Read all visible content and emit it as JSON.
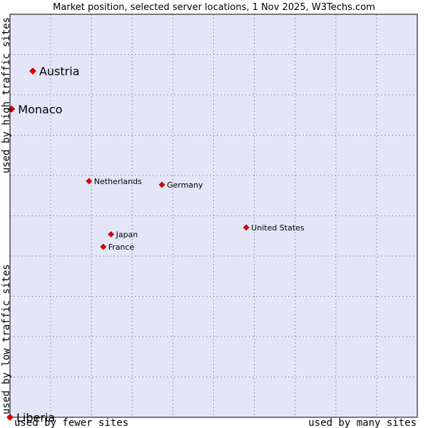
{
  "chart_data": {
    "type": "scatter",
    "title": "Market position, selected server locations, 1 Nov 2025, W3Techs.com",
    "xlabel_left": "used by fewer sites",
    "xlabel_right": "used by many sites",
    "ylabel_bottom": "used by low traffic sites",
    "ylabel_top": "used by high traffic sites",
    "xlim": [
      0,
      100
    ],
    "ylim": [
      0,
      100
    ],
    "grid": true,
    "colors": {
      "plot_background": "#e4e6f8",
      "point": "#e00000",
      "frame": "#000000"
    },
    "points": [
      {
        "label": "Austria",
        "x": 5.6,
        "y": 85.9,
        "emphasis": true
      },
      {
        "label": "Monaco",
        "x": 0.4,
        "y": 76.5,
        "emphasis": true
      },
      {
        "label": "Netherlands",
        "x": 19.4,
        "y": 58.6,
        "emphasis": false
      },
      {
        "label": "Germany",
        "x": 37.3,
        "y": 57.7,
        "emphasis": false
      },
      {
        "label": "United States",
        "x": 58.0,
        "y": 47.1,
        "emphasis": false
      },
      {
        "label": "Japan",
        "x": 24.8,
        "y": 45.4,
        "emphasis": false
      },
      {
        "label": "France",
        "x": 22.9,
        "y": 42.3,
        "emphasis": false
      },
      {
        "label": "Liberia",
        "x": 0.0,
        "y": 0.0,
        "emphasis": true
      }
    ]
  }
}
